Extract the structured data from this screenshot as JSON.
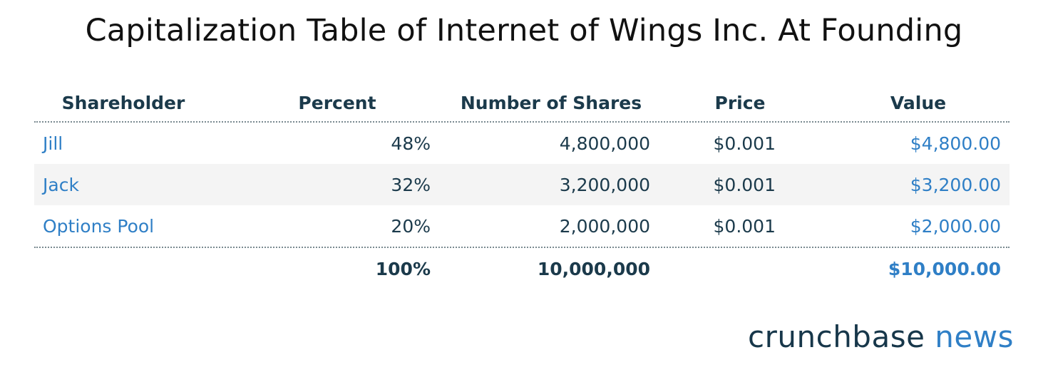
{
  "chart_data": {
    "type": "table",
    "title": "Capitalization Table of Internet of Wings Inc. At Founding",
    "columns": [
      "Shareholder",
      "Percent",
      "Number of Shares",
      "Price",
      "Value"
    ],
    "rows": [
      {
        "shareholder": "Jill",
        "percent": "48%",
        "shares": "4,800,000",
        "price": "$0.001",
        "value": "$4,800.00"
      },
      {
        "shareholder": "Jack",
        "percent": "32%",
        "shares": "3,200,000",
        "price": "$0.001",
        "value": "$3,200.00"
      },
      {
        "shareholder": "Options Pool",
        "percent": "20%",
        "shares": "2,000,000",
        "price": "$0.001",
        "value": "$2,000.00"
      }
    ],
    "totals": {
      "percent": "100%",
      "shares": "10,000,000",
      "value": "$10,000.00"
    }
  },
  "branding": {
    "part1": "crunchbase",
    "part2": "news"
  },
  "colors": {
    "accent_blue": "#2f7fc6",
    "dark_navy": "#1b3a4b",
    "row_shade": "#f4f4f4"
  }
}
